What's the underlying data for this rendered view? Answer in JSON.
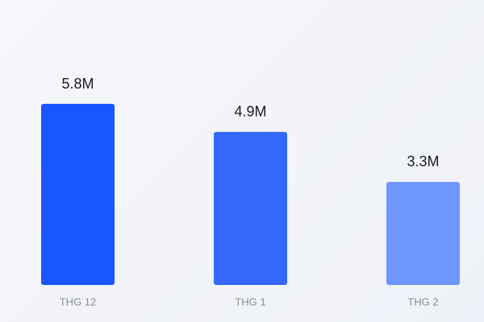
{
  "chart_data": {
    "type": "bar",
    "categories": [
      "THG 12",
      "THG 1",
      "THG 2"
    ],
    "values": [
      5.8,
      4.9,
      3.3
    ],
    "value_labels": [
      "5.8M",
      "4.9M",
      "3.3M"
    ],
    "colors": [
      "#1a56ff",
      "#3468fb",
      "#6d97fd"
    ]
  }
}
